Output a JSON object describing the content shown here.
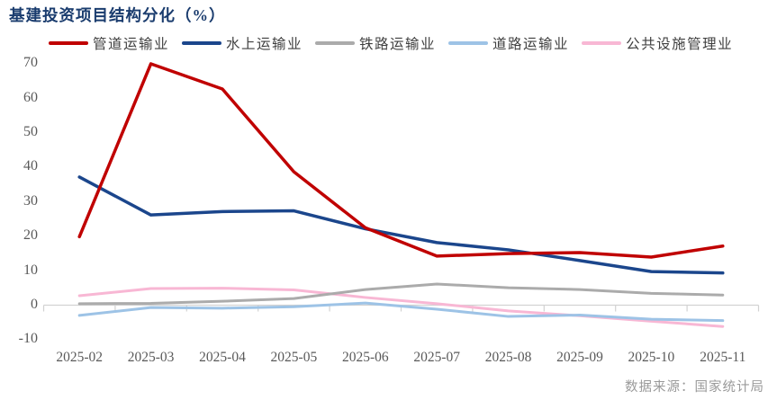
{
  "title": "基建投资项目结构分化（%）",
  "source": "数据来源：国家统计局",
  "colors": {
    "title": "#1A3C6E",
    "axis_line": "#D2D2D2",
    "axis_text": "#595959",
    "legend_text": "#3F3F3F",
    "source_text": "#9A9A9A",
    "background": "#FFFFFF"
  },
  "chart_data": {
    "type": "line",
    "title": "基建投资项目结构分化（%）",
    "xlabel": "",
    "ylabel": "",
    "ylim": [
      -10,
      70
    ],
    "yticks": [
      "70",
      "60",
      "50",
      "40",
      "30",
      "20",
      "10",
      "0",
      "-10"
    ],
    "ytick_values": [
      70,
      60,
      50,
      40,
      30,
      20,
      10,
      0,
      -10
    ],
    "grid": false,
    "legend_position": "top",
    "categories": [
      "2025-02",
      "2025-03",
      "2025-04",
      "2025-05",
      "2025-06",
      "2025-07",
      "2025-08",
      "2025-09",
      "2025-10",
      "2025-11"
    ],
    "series": [
      {
        "name": "管道运输业",
        "color": "#C00000",
        "values": [
          19.7,
          69.8,
          62.5,
          38.5,
          22.3,
          14.1,
          14.8,
          15.1,
          13.8,
          17.0
        ]
      },
      {
        "name": "水上运输业",
        "color": "#1B468C",
        "values": [
          37.0,
          26.0,
          27.0,
          27.2,
          22.0,
          18.0,
          15.9,
          12.8,
          9.6,
          9.2
        ]
      },
      {
        "name": "铁路运输业",
        "color": "#ABABAB",
        "values": [
          0.3,
          0.4,
          1.0,
          1.8,
          4.4,
          6.0,
          4.9,
          4.4,
          3.3,
          2.8
        ]
      },
      {
        "name": "道路运输业",
        "color": "#9DC3E6",
        "values": [
          -3.1,
          -0.8,
          -1.0,
          -0.6,
          0.5,
          -1.3,
          -3.4,
          -3.0,
          -4.2,
          -4.6
        ]
      },
      {
        "name": "公共设施管理业",
        "color": "#F8B7D4",
        "values": [
          2.6,
          4.7,
          4.8,
          4.3,
          2.1,
          0.3,
          -1.8,
          -3.2,
          -4.8,
          -6.3
        ]
      }
    ]
  }
}
